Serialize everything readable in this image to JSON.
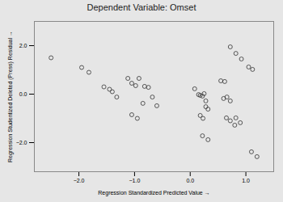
{
  "chart_data": {
    "type": "scatter",
    "title": "Dependent Variable: Omset",
    "xlabel": "Regression Standardized Predicted Value",
    "ylabel": "Regression Studentized Deleted (Press) Residual",
    "x": [
      -2.5,
      -1.95,
      -1.82,
      -1.55,
      -1.45,
      -1.4,
      -1.32,
      -1.12,
      -1.05,
      -0.98,
      -1.05,
      -0.95,
      -0.92,
      -0.82,
      -0.75,
      -0.68,
      -0.85,
      -0.6,
      0.08,
      0.15,
      0.18,
      0.22,
      0.25,
      0.28,
      0.18,
      0.23,
      0.28,
      0.32,
      0.22,
      0.32,
      0.55,
      0.62,
      0.6,
      0.66,
      0.72,
      0.65,
      0.72,
      0.8,
      0.72,
      0.82,
      0.92,
      0.82,
      0.9,
      1.05,
      1.12,
      1.1,
      1.2
    ],
    "values": [
      1.5,
      1.1,
      0.9,
      0.3,
      0.2,
      0.1,
      -0.12,
      0.65,
      0.45,
      0.35,
      -0.85,
      -1.0,
      0.65,
      0.32,
      0.28,
      -0.12,
      -0.38,
      -0.48,
      0.22,
      -0.02,
      -0.05,
      -0.08,
      0.02,
      -0.28,
      -0.88,
      -1.0,
      -0.52,
      -0.62,
      -1.72,
      -1.88,
      0.55,
      0.52,
      -0.18,
      -0.12,
      -0.28,
      -0.98,
      -1.1,
      -1.28,
      1.95,
      1.68,
      1.45,
      -0.98,
      -1.18,
      1.12,
      1.02,
      -2.38,
      -2.58
    ],
    "xlim": [
      -2.8,
      1.5
    ],
    "ylim": [
      -3.2,
      3.0
    ],
    "xticks": [
      -2,
      -1,
      0,
      1
    ],
    "yticks": [
      -2,
      0,
      2
    ],
    "color": "#333333",
    "marker": "circle",
    "grid": false
  }
}
